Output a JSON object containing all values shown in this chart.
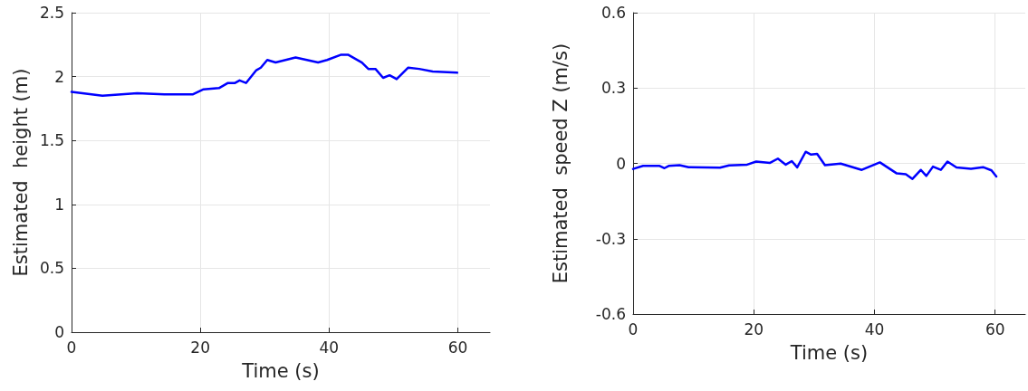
{
  "chart_data": [
    {
      "type": "line",
      "xlabel": "Time (s)",
      "ylabel": "Estimated  height (m)",
      "xlim": [
        0,
        65
      ],
      "xticks": [
        0,
        20,
        40,
        60
      ],
      "ylim": [
        0,
        2.5
      ],
      "yticks": [
        0,
        0.5,
        1,
        1.5,
        2,
        2.5
      ],
      "grid": true,
      "marker": "none",
      "line_style": "solid",
      "series": [
        {
          "color": "#0000ff",
          "x": [
            0,
            4.8,
            10.2,
            14.4,
            18.8,
            20.5,
            22.9,
            24.3,
            25.4,
            26.1,
            27.1,
            28.7,
            29.4,
            30.4,
            31.7,
            34.8,
            38.3,
            39.7,
            41.8,
            43.0,
            45.1,
            46.1,
            47.2,
            48.4,
            49.4,
            50.5,
            52.3,
            54.0,
            56.1,
            59.9
          ],
          "values": [
            1.88,
            1.85,
            1.87,
            1.86,
            1.86,
            1.9,
            1.91,
            1.95,
            1.95,
            1.97,
            1.95,
            2.05,
            2.07,
            2.13,
            2.11,
            2.15,
            2.11,
            2.13,
            2.17,
            2.17,
            2.11,
            2.06,
            2.06,
            1.99,
            2.01,
            1.98,
            2.07,
            2.06,
            2.04,
            2.03
          ]
        }
      ]
    },
    {
      "type": "line",
      "xlabel": "Time (s)",
      "ylabel": "Estimated  speed Z (m/s)",
      "xlim": [
        0,
        65
      ],
      "xticks": [
        0,
        20,
        40,
        60
      ],
      "ylim": [
        -0.6,
        0.6
      ],
      "yticks": [
        -0.6,
        -0.3,
        0,
        0.3,
        0.6
      ],
      "grid": true,
      "marker": "none",
      "line_style": "solid",
      "series": [
        {
          "color": "#0000ff",
          "x": [
            0,
            1.65,
            4.4,
            5.2,
            5.9,
            7.7,
            9.2,
            14.4,
            15.9,
            18.9,
            20.4,
            22.7,
            24.0,
            25.3,
            26.3,
            27.2,
            28.6,
            29.5,
            30.5,
            31.8,
            34.4,
            37.9,
            40.9,
            43.7,
            45.2,
            46.3,
            47.7,
            48.6,
            49.7,
            51.0,
            52.1,
            53.6,
            56.0,
            58.0,
            59.4,
            60.2
          ],
          "values": [
            -0.022,
            -0.01,
            -0.01,
            -0.019,
            -0.01,
            -0.007,
            -0.015,
            -0.017,
            -0.008,
            -0.005,
            0.007,
            0.002,
            0.019,
            -0.005,
            0.009,
            -0.016,
            0.046,
            0.035,
            0.038,
            -0.007,
            -0.001,
            -0.026,
            0.004,
            -0.04,
            -0.043,
            -0.062,
            -0.026,
            -0.05,
            -0.013,
            -0.026,
            0.007,
            -0.016,
            -0.022,
            -0.015,
            -0.028,
            -0.052
          ]
        }
      ]
    }
  ]
}
